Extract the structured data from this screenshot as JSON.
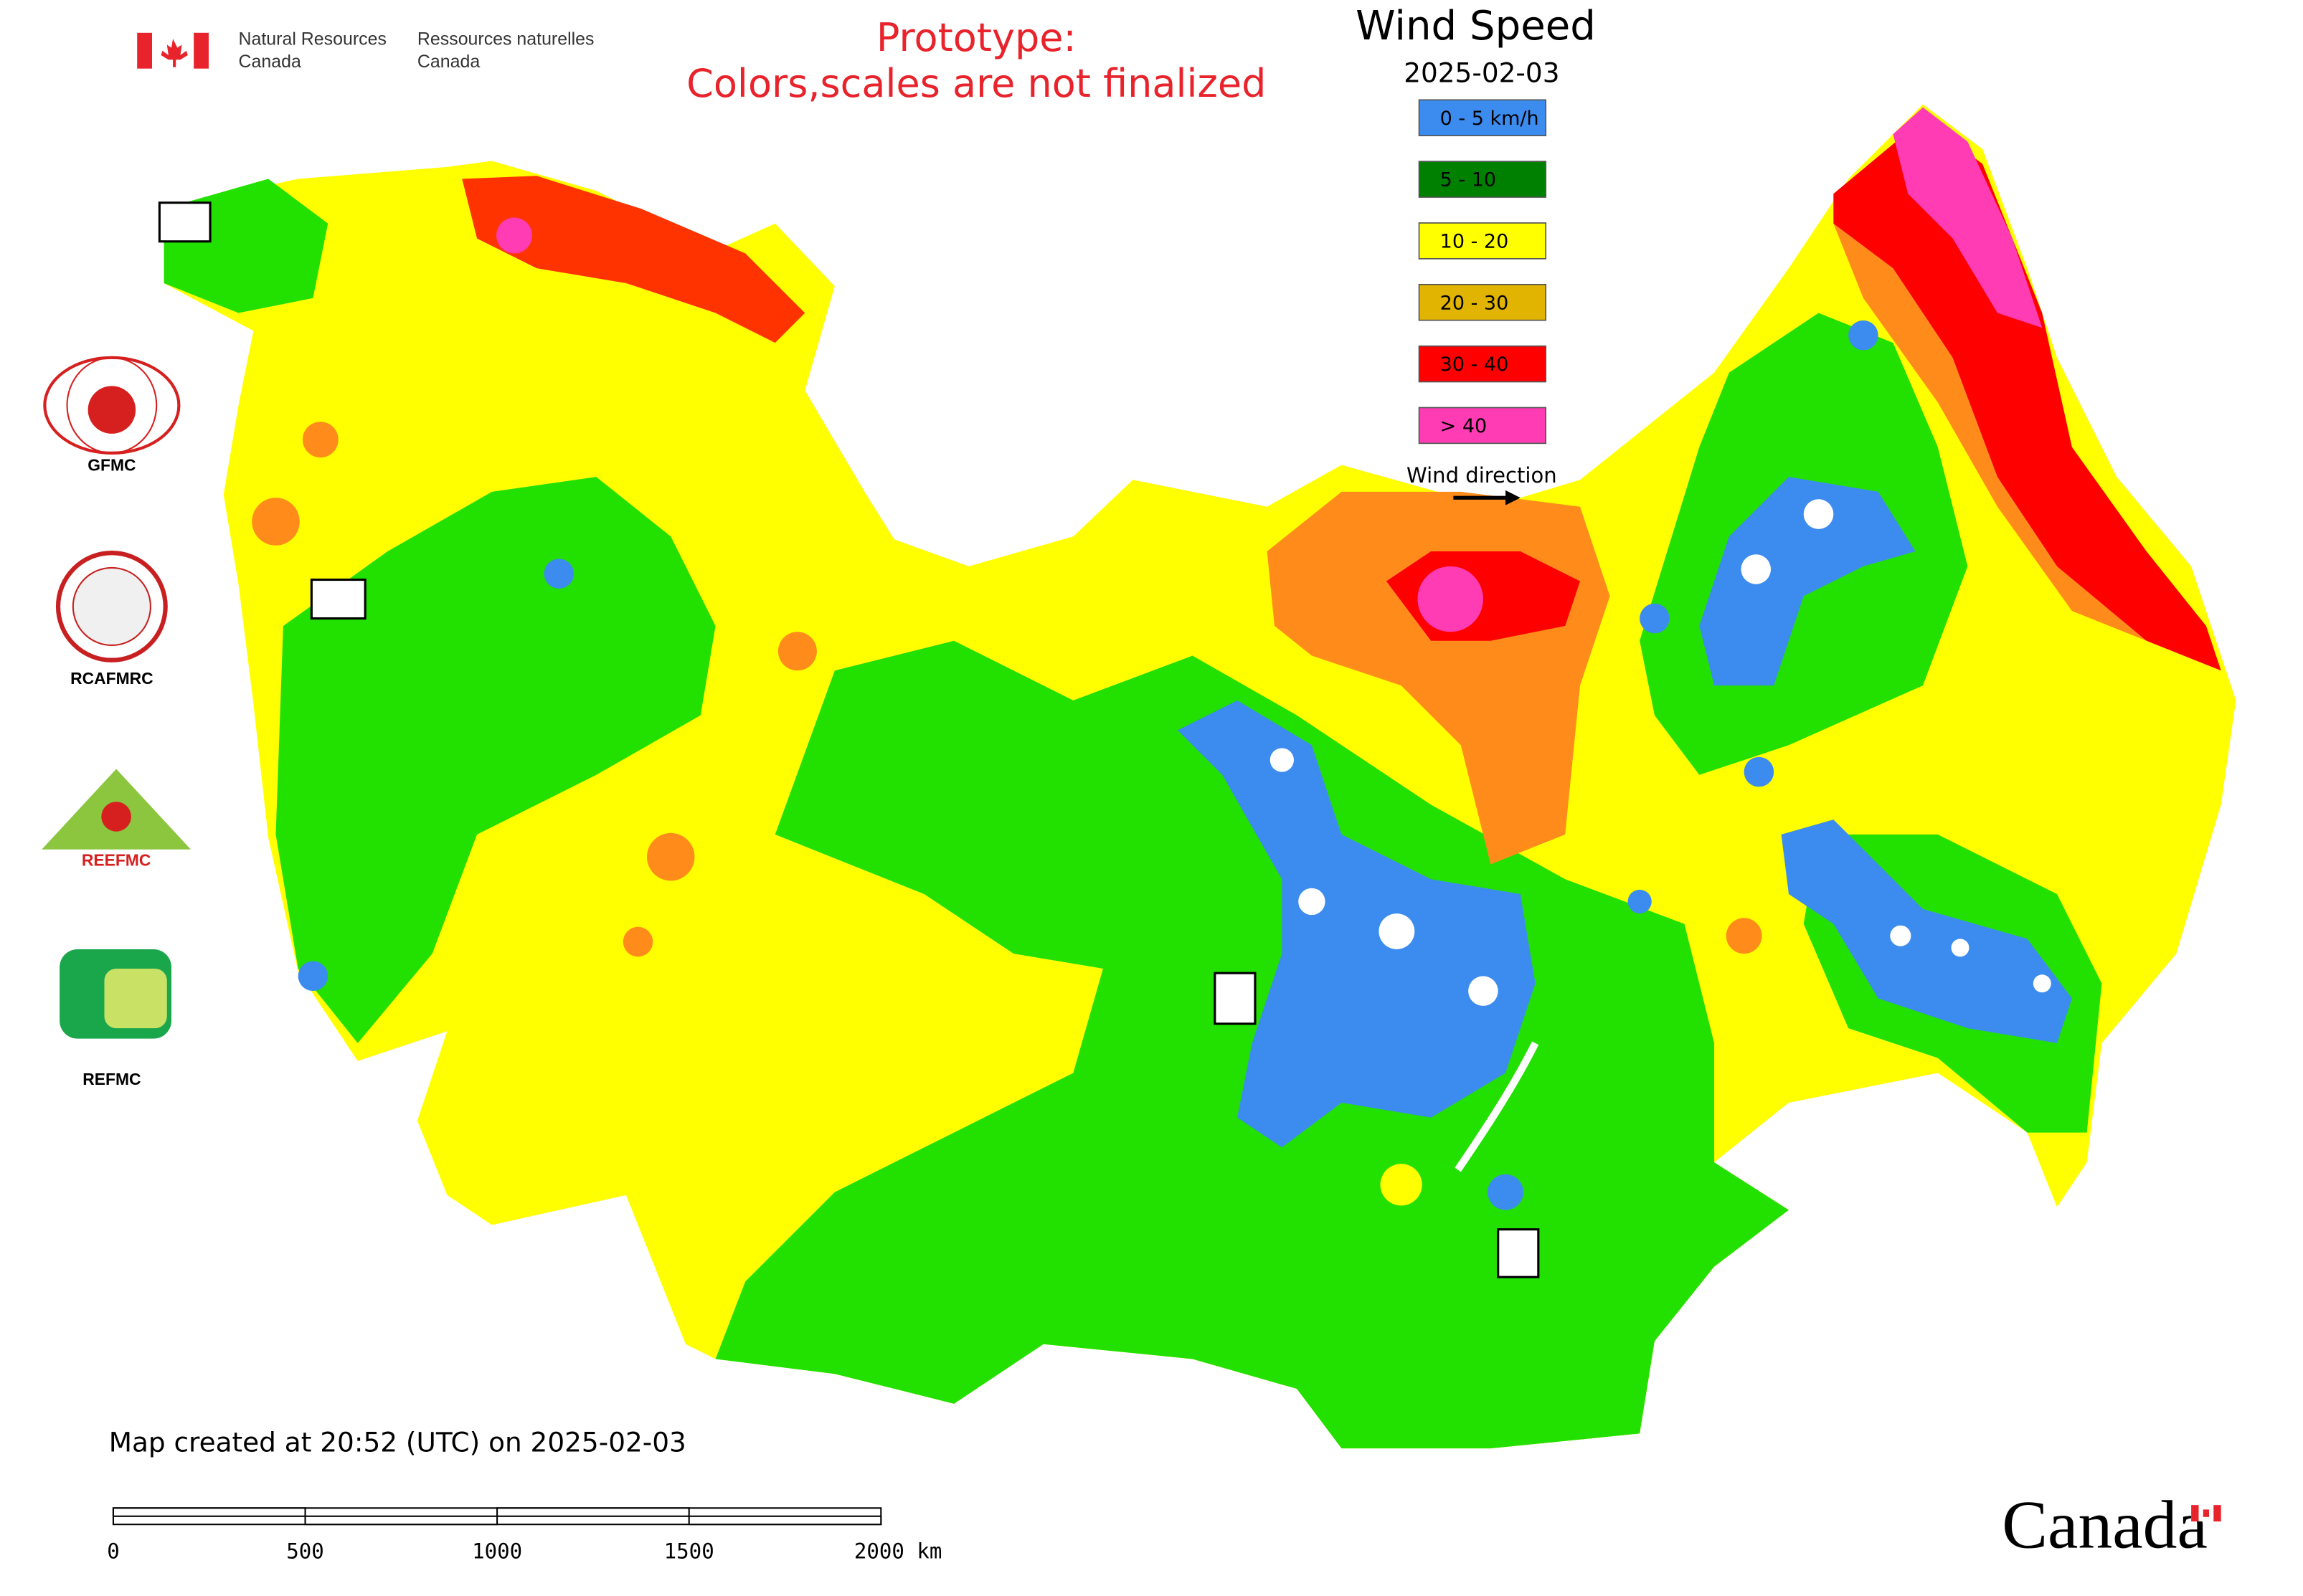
{
  "header": {
    "org_en": [
      "Natural Resources",
      "Canada"
    ],
    "org_fr": [
      "Ressources naturelles",
      "Canada"
    ]
  },
  "notice": [
    "Prototype:",
    "Colors,scales are not finalized"
  ],
  "title": "Wind Speed",
  "date": "2025-02-03",
  "legend": [
    {
      "label": "0 - 5 km/h",
      "color": "#3c8cf0"
    },
    {
      "label": "5 - 10",
      "color": "#008000"
    },
    {
      "label": "10 - 20",
      "color": "#ffff00"
    },
    {
      "label": "20 - 30",
      "color": "#e0b400"
    },
    {
      "label": "30 - 40",
      "color": "#ff0000"
    },
    {
      "label": "> 40",
      "color": "#ff3cb4"
    }
  ],
  "wind_direction": "Wind direction",
  "centres": [
    "GFMC",
    "RCAFMRC",
    "REEFMC",
    "REFMC"
  ],
  "created": "Map created at 20:52 (UTC) on 2025-02-03",
  "scale_bar": [
    "0",
    "500",
    "1000",
    "1500",
    "2000 km"
  ],
  "wordmark": "Canada"
}
